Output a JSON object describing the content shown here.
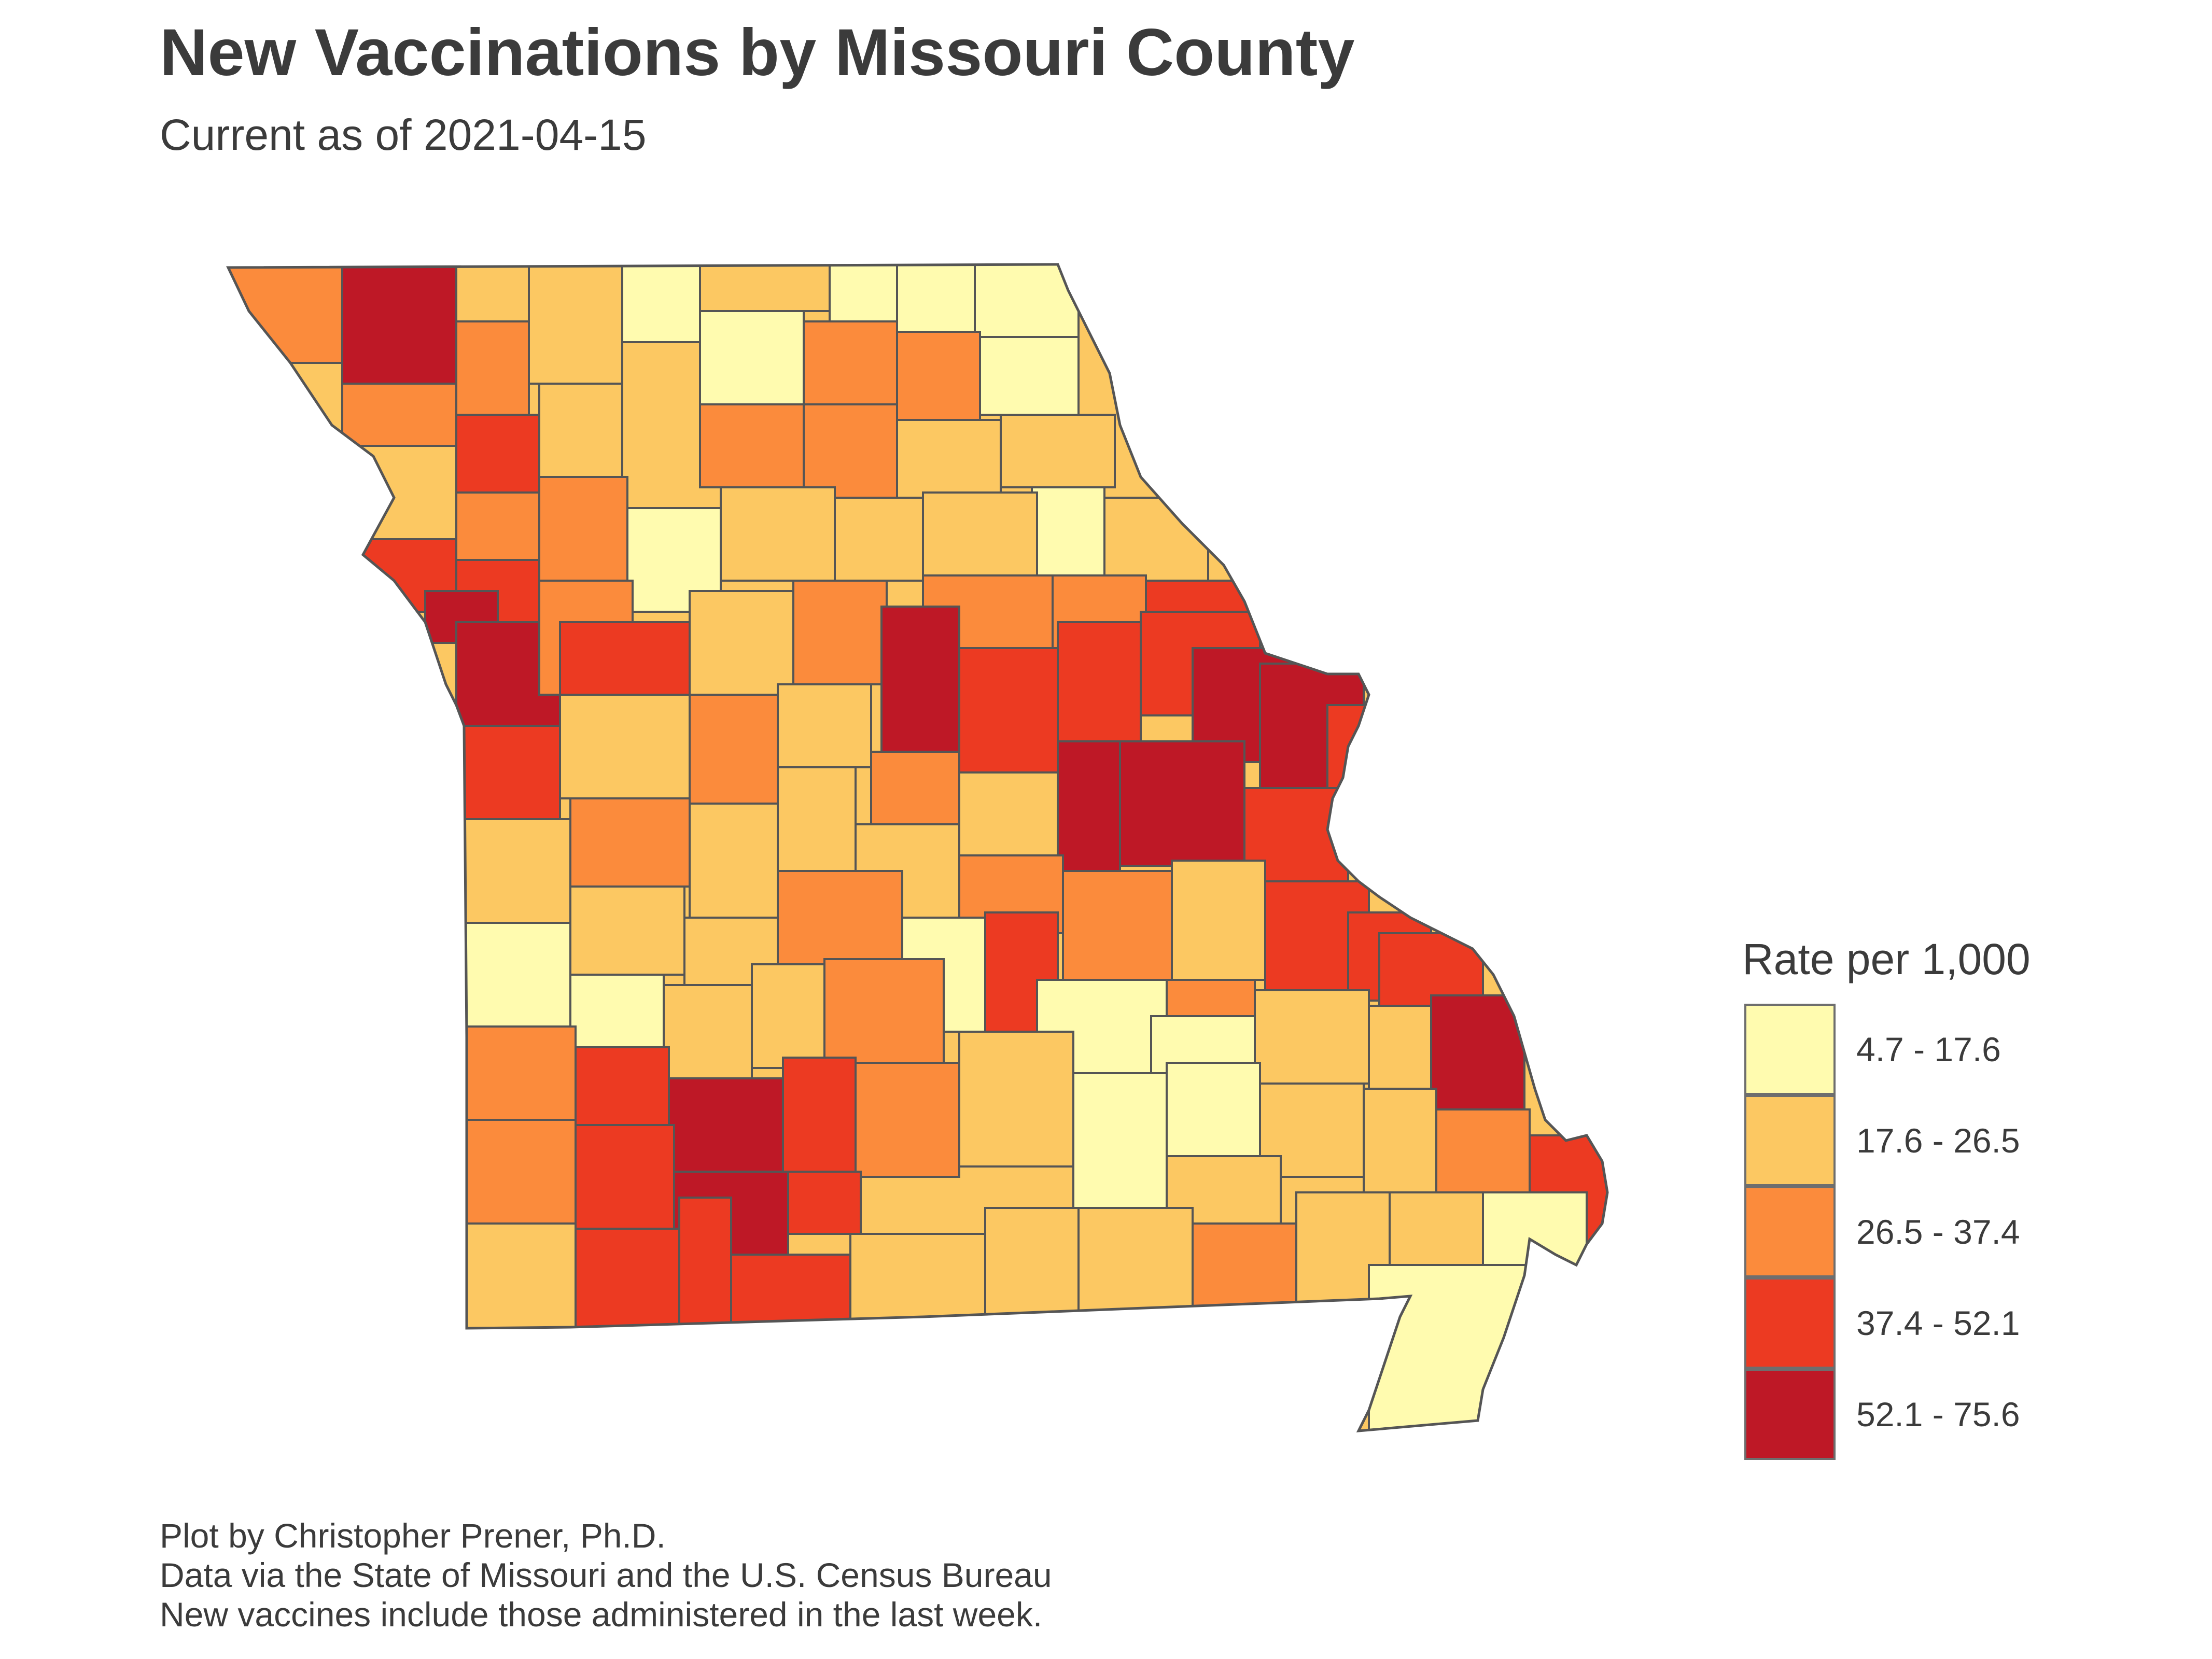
{
  "title": "New Vaccinations by Missouri County",
  "subtitle": "Current as of 2021-04-15",
  "legend": {
    "title": "Rate per 1,000",
    "items": [
      {
        "label": "4.7 - 17.6",
        "color": "#FFFBAF"
      },
      {
        "label": "17.6 - 26.5",
        "color": "#FCC862"
      },
      {
        "label": "26.5 - 37.4",
        "color": "#FB8B3C"
      },
      {
        "label": "37.4 - 52.1",
        "color": "#EC3A22"
      },
      {
        "label": "52.1 - 75.6",
        "color": "#BE1826"
      }
    ]
  },
  "captions": [
    "Plot by Christopher Prener, Ph.D.",
    "Data via the State of Missouri and the U.S. Census Bureau",
    "New vaccines include those administered in the last week."
  ],
  "map": {
    "region": "Missouri",
    "unit": "county",
    "border_color": "#555555"
  }
}
